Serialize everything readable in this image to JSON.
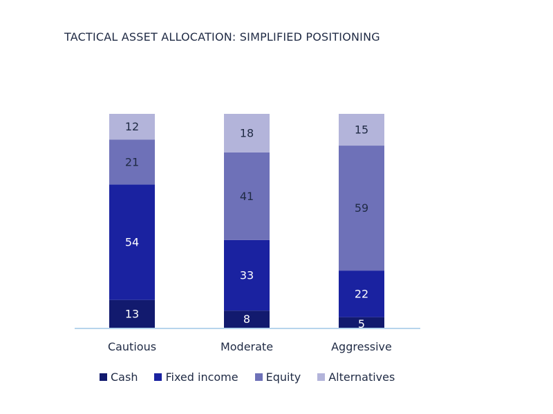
{
  "chart_data": {
    "type": "bar",
    "stacked": true,
    "title": "TACTICAL ASSET ALLOCATION: SIMPLIFIED POSITIONING",
    "categories": [
      "Cautious",
      "Moderate",
      "Aggressive"
    ],
    "series": [
      {
        "name": "Cash",
        "values": [
          13,
          8,
          5
        ],
        "color": "#121a6e",
        "label_color": "#ffffff"
      },
      {
        "name": "Fixed income",
        "values": [
          54,
          33,
          22
        ],
        "color": "#1a22a0",
        "label_color": "#ffffff"
      },
      {
        "name": "Equity",
        "values": [
          21,
          41,
          59
        ],
        "color": "#6e71b8",
        "label_color": "#1f2a44"
      },
      {
        "name": "Alternatives",
        "values": [
          12,
          18,
          15
        ],
        "color": "#b3b4da",
        "label_color": "#1f2a44"
      }
    ],
    "ylim": [
      0,
      100
    ],
    "grid": false,
    "legend_position": "bottom",
    "axis_color": "#9ec5e6"
  }
}
